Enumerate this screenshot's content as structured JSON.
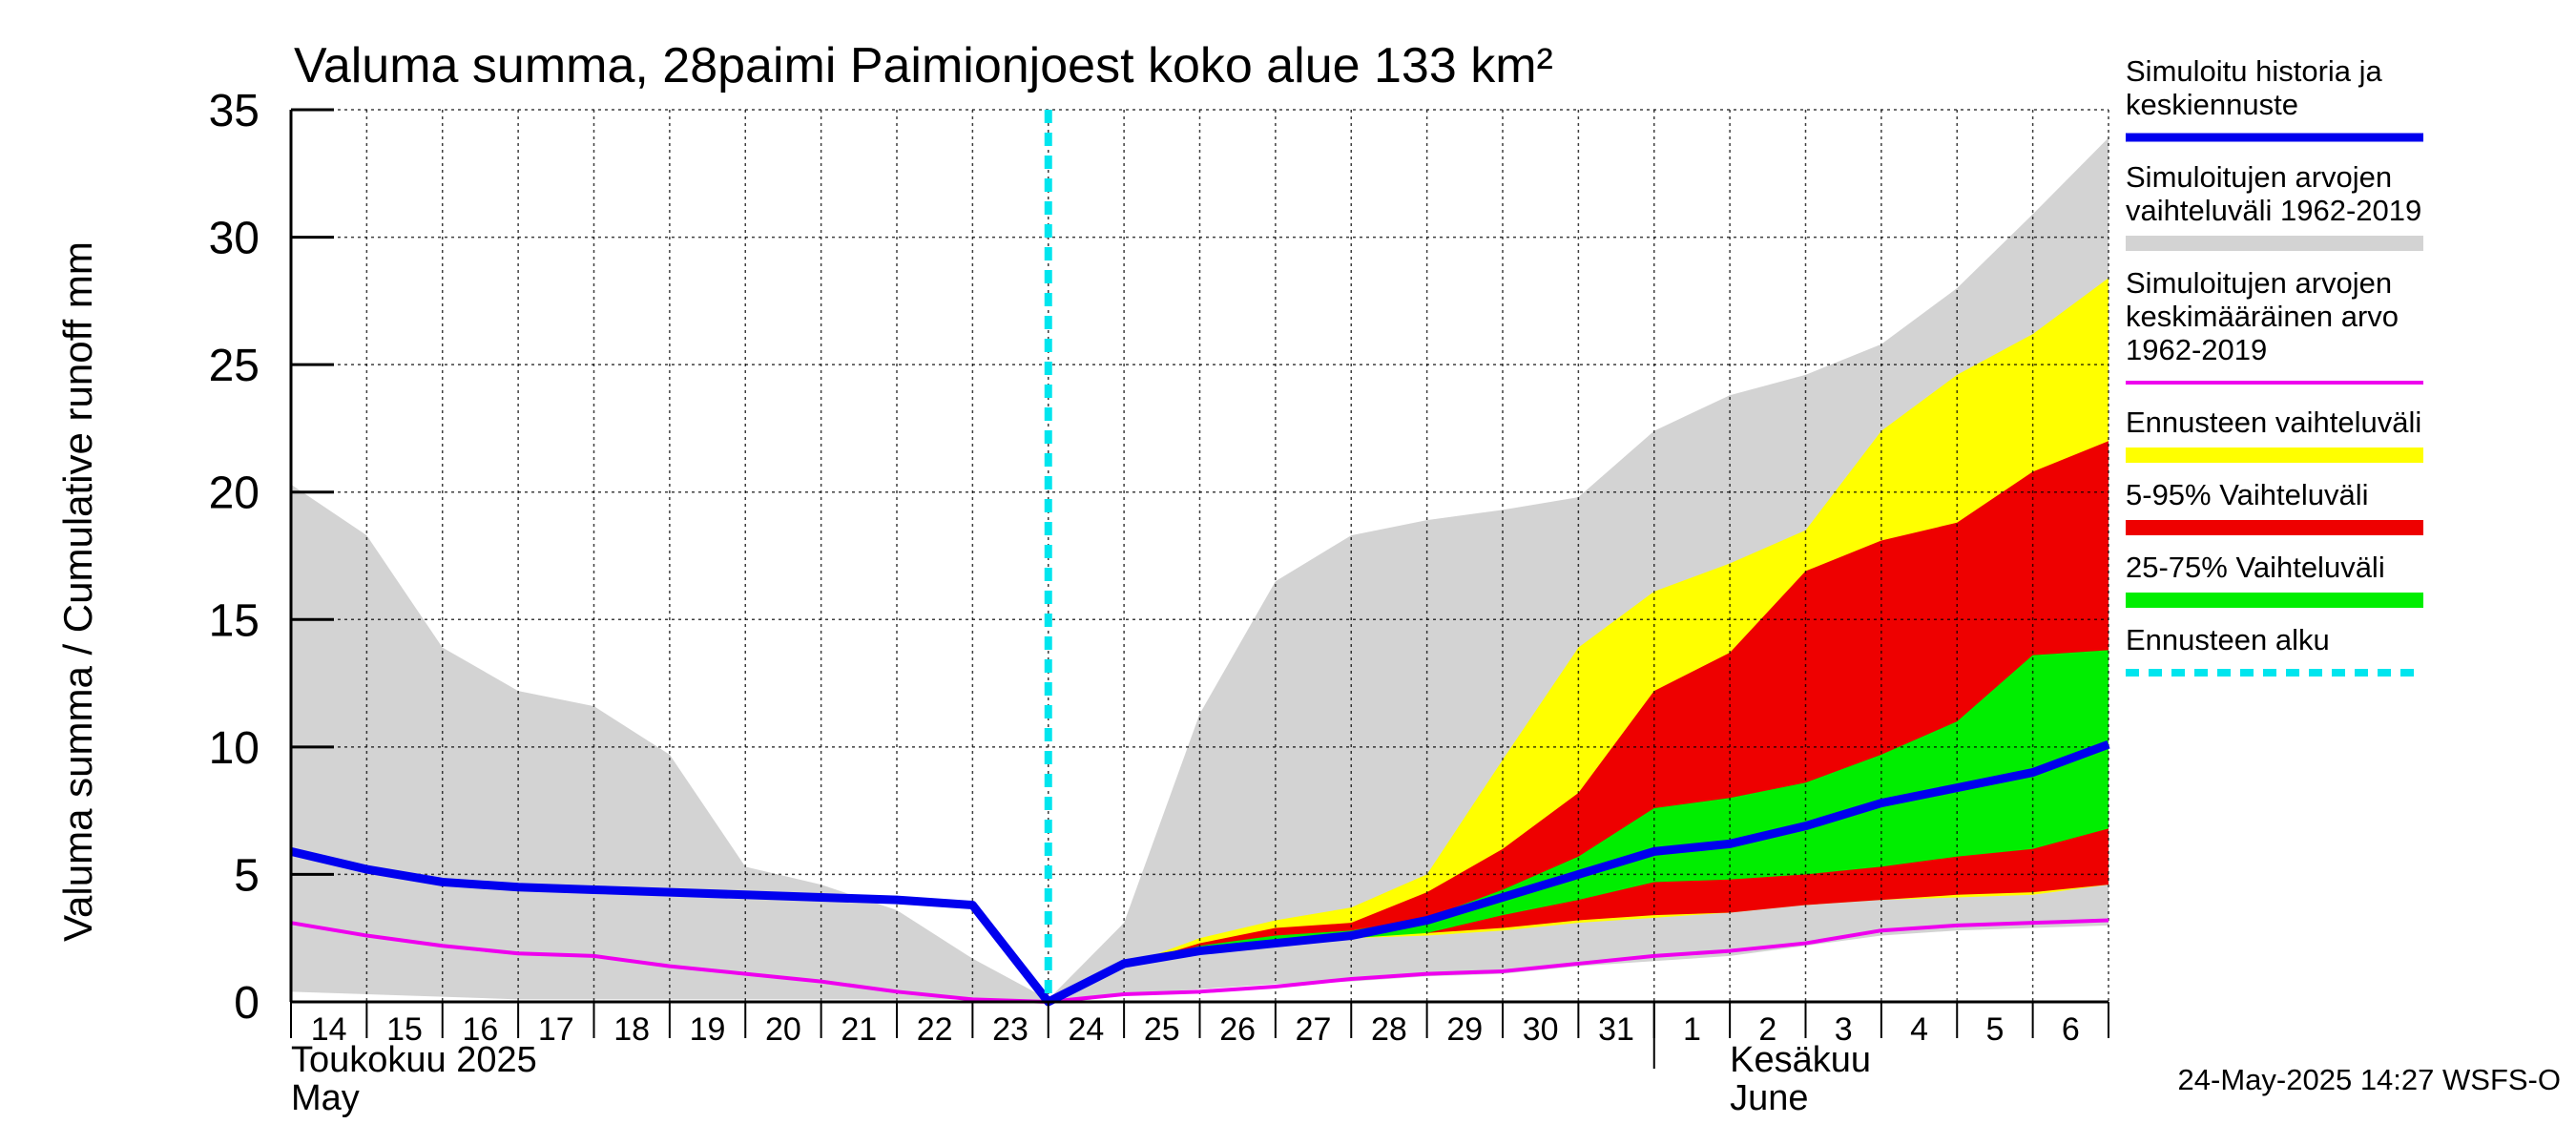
{
  "chart_data": {
    "type": "area",
    "title": "Valuma summa, 28paimi Paimionjoest koko alue 133 km²",
    "ylabel": "Valuma summa / Cumulative runoff    mm",
    "ylim": [
      0,
      35
    ],
    "yticks": [
      0,
      5,
      10,
      15,
      20,
      25,
      30,
      35
    ],
    "grid": true,
    "x_labels": [
      "14",
      "15",
      "16",
      "17",
      "18",
      "19",
      "20",
      "21",
      "22",
      "23",
      "24",
      "25",
      "26",
      "27",
      "28",
      "29",
      "30",
      "31",
      "1",
      "2",
      "3",
      "4",
      "5",
      "6"
    ],
    "x": [
      "2025-05-14",
      "2025-05-15",
      "2025-05-16",
      "2025-05-17",
      "2025-05-18",
      "2025-05-19",
      "2025-05-20",
      "2025-05-21",
      "2025-05-22",
      "2025-05-23",
      "2025-05-24",
      "2025-05-25",
      "2025-05-26",
      "2025-05-27",
      "2025-05-28",
      "2025-05-29",
      "2025-05-30",
      "2025-05-31",
      "2025-06-01",
      "2025-06-02",
      "2025-06-03",
      "2025-06-04",
      "2025-06-05",
      "2025-06-06",
      "2025-06-07"
    ],
    "month_labels": [
      {
        "line1": "Toukokuu  2025",
        "line2": "May",
        "date": "2025-05-14"
      },
      {
        "line1": "Kesäkuu",
        "line2": "June",
        "date": "2025-06-02"
      }
    ],
    "forecast_start": "2025-05-24",
    "colors": {
      "history": "#0000ee",
      "range_hist": "#d3d3d3",
      "mean_hist": "#ee00ee",
      "forecast_range": "#ffff00",
      "p5_95": "#ee0000",
      "p25_75": "#00ee00",
      "forecast_start": "#00e5ee"
    },
    "series": [
      {
        "name": "Simuloitujen arvojen vaihteluväli 1962-2019",
        "kind": "band",
        "color": "#d3d3d3",
        "low": [
          0.4,
          0.3,
          0.2,
          0.1,
          0.1,
          0.1,
          0.1,
          0.1,
          0.1,
          0.1,
          0.0,
          0.3,
          0.5,
          0.7,
          0.8,
          1.0,
          1.1,
          1.4,
          1.6,
          1.8,
          2.2,
          2.6,
          2.8,
          2.9,
          3.0
        ],
        "high": [
          20.3,
          18.3,
          13.9,
          12.2,
          11.6,
          9.7,
          5.3,
          4.6,
          3.6,
          1.7,
          0.1,
          3.1,
          11.3,
          16.5,
          18.3,
          18.9,
          19.3,
          19.8,
          22.4,
          23.8,
          24.6,
          25.8,
          28.0,
          30.9,
          33.9
        ]
      },
      {
        "name": "Ennusteen vaihteluväli",
        "kind": "band",
        "color": "#ffff00",
        "x_start": 10,
        "low": [
          0.0,
          1.4,
          2.0,
          2.4,
          2.5,
          2.6,
          2.8,
          3.1,
          3.3,
          3.5,
          3.8,
          4.0,
          4.1,
          4.2,
          4.6
        ],
        "high": [
          0.0,
          1.4,
          2.5,
          3.2,
          3.7,
          5.0,
          9.5,
          13.9,
          16.1,
          17.2,
          18.5,
          22.4,
          24.6,
          26.2,
          28.4
        ]
      },
      {
        "name": "5-95% Vaihteluväli",
        "kind": "band",
        "color": "#ee0000",
        "x_start": 10,
        "low": [
          0.0,
          1.4,
          2.1,
          2.5,
          2.6,
          2.7,
          2.9,
          3.2,
          3.4,
          3.5,
          3.8,
          4.0,
          4.2,
          4.3,
          4.6
        ],
        "high": [
          0.0,
          1.4,
          2.3,
          2.9,
          3.1,
          4.3,
          6.0,
          8.2,
          12.2,
          13.7,
          16.9,
          18.1,
          18.8,
          20.8,
          22.0
        ]
      },
      {
        "name": "25-75% Vaihteluväli",
        "kind": "band",
        "color": "#00ee00",
        "x_start": 10,
        "low": [
          0.0,
          1.4,
          2.1,
          2.4,
          2.5,
          2.7,
          3.4,
          4.0,
          4.7,
          4.8,
          5.0,
          5.3,
          5.7,
          6.0,
          6.8
        ],
        "high": [
          0.0,
          1.4,
          2.2,
          2.6,
          2.8,
          3.3,
          4.4,
          5.7,
          7.6,
          8.0,
          8.6,
          9.7,
          11.0,
          13.6,
          13.8
        ]
      },
      {
        "name": "Simuloitujen arvojen keskimääräinen arvo 1962-2019",
        "kind": "line",
        "color": "#ee00ee",
        "values": [
          3.1,
          2.6,
          2.2,
          1.9,
          1.8,
          1.4,
          1.1,
          0.8,
          0.4,
          0.1,
          0.0,
          0.3,
          0.4,
          0.6,
          0.9,
          1.1,
          1.2,
          1.5,
          1.8,
          2.0,
          2.3,
          2.8,
          3.0,
          3.1,
          3.2
        ]
      },
      {
        "name": "Simuloitu historia ja keskiennuste",
        "kind": "line",
        "color": "#0000ee",
        "values": [
          5.9,
          5.2,
          4.7,
          4.5,
          4.4,
          4.3,
          4.2,
          4.1,
          4.0,
          3.8,
          0.0,
          1.5,
          2.0,
          2.3,
          2.6,
          3.2,
          4.1,
          5.0,
          5.9,
          6.2,
          6.9,
          7.8,
          8.4,
          9.0,
          10.1
        ]
      }
    ],
    "legend": [
      {
        "label_lines": [
          "Simuloitu historia ja",
          "keskiennuste"
        ],
        "color": "#0000ee",
        "style": "line-thick"
      },
      {
        "label_lines": [
          "Simuloitujen arvojen",
          "vaihteluväli 1962-2019"
        ],
        "color": "#d3d3d3",
        "style": "bar"
      },
      {
        "label_lines": [
          "Simuloitujen arvojen",
          "keskimääräinen arvo",
          "   1962-2019"
        ],
        "color": "#ee00ee",
        "style": "line-thin"
      },
      {
        "label_lines": [
          "Ennusteen vaihteluväli"
        ],
        "color": "#ffff00",
        "style": "bar"
      },
      {
        "label_lines": [
          "5-95% Vaihteluväli"
        ],
        "color": "#ee0000",
        "style": "bar"
      },
      {
        "label_lines": [
          "25-75% Vaihteluväli"
        ],
        "color": "#00ee00",
        "style": "bar"
      },
      {
        "label_lines": [
          "Ennusteen alku"
        ],
        "color": "#00e5ee",
        "style": "dashed"
      }
    ],
    "legend_placement": "right",
    "footer": "24-May-2025 14:27 WSFS-O"
  }
}
